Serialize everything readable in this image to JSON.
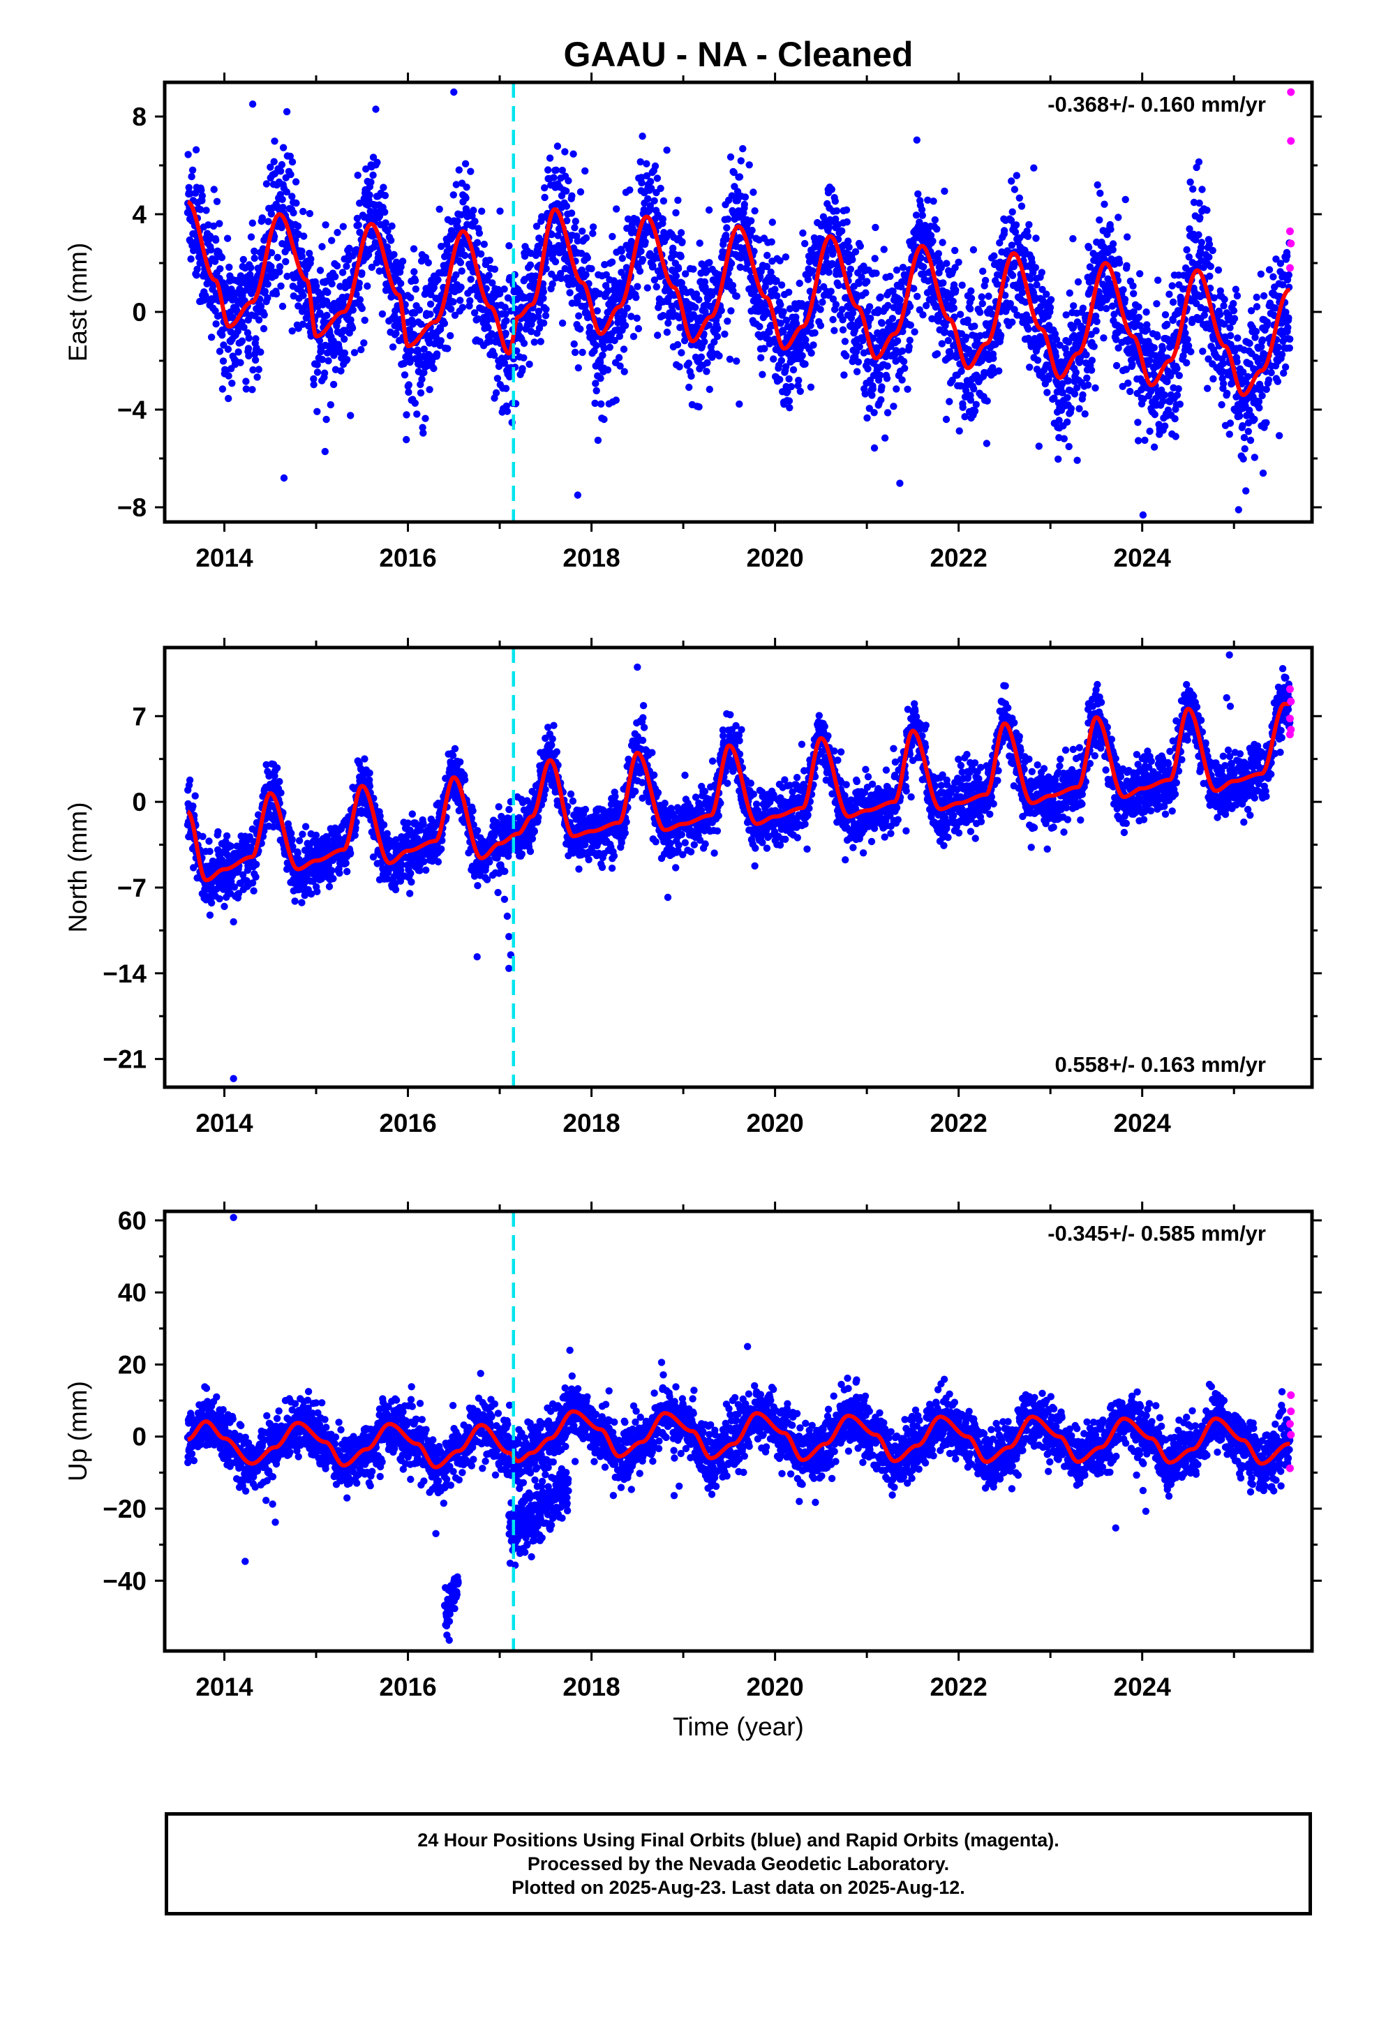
{
  "title": "GAAU  - NA - Cleaned",
  "xlabel": "Time (year)",
  "colors": {
    "final_orbits": "#0000ff",
    "rapid_orbits": "#ff00ff",
    "model_fit": "#ff0000",
    "equipment_change": "#00e5ee",
    "frame": "#000000"
  },
  "footer": {
    "line1": "24 Hour Positions Using Final Orbits (blue) and Rapid Orbits (magenta).",
    "line2": "Processed by the Nevada Geodetic Laboratory.",
    "line3": "Plotted on 2025-Aug-23. Last data on 2025-Aug-12."
  },
  "chart_data": [
    {
      "type": "scatter",
      "component": "east",
      "ylabel": "East (mm)",
      "xlim": [
        2013.35,
        2025.85
      ],
      "ylim": [
        -8.6,
        9.4
      ],
      "x_ticks": [
        2014,
        2016,
        2018,
        2020,
        2022,
        2024
      ],
      "x_tick_labels": [
        "2014",
        "2016",
        "2018",
        "2020",
        "2022",
        "2024"
      ],
      "y_ticks": [
        -8,
        -4,
        0,
        4,
        8
      ],
      "y_tick_labels": [
        "−8",
        "−4",
        "0",
        "4",
        "8"
      ],
      "rate_text": "-0.368+/- 0.160 mm/yr",
      "rate_position": "top-right",
      "equipment_change_year": 2017.15,
      "data_start": 2013.6,
      "data_end": 2025.61,
      "model_fit": {
        "x": [
          2013.6,
          2013.9,
          2014.05,
          2014.3,
          2014.6,
          2014.9,
          2015.0,
          2015.3,
          2015.6,
          2015.9,
          2016.0,
          2016.3,
          2016.6,
          2016.9,
          2017.1,
          2017.2,
          2017.35,
          2017.6,
          2017.9,
          2018.1,
          2018.3,
          2018.6,
          2018.9,
          2019.1,
          2019.3,
          2019.6,
          2019.9,
          2020.1,
          2020.3,
          2020.6,
          2020.9,
          2021.1,
          2021.3,
          2021.6,
          2021.9,
          2022.1,
          2022.3,
          2022.6,
          2022.9,
          2023.1,
          2023.3,
          2023.6,
          2023.9,
          2024.1,
          2024.3,
          2024.6,
          2024.9,
          2025.1,
          2025.3,
          2025.6
        ],
        "y": [
          4.5,
          1.3,
          -0.6,
          0.4,
          4.0,
          1.3,
          -1.0,
          0.0,
          3.6,
          0.7,
          -1.4,
          -0.4,
          3.3,
          0.2,
          -1.7,
          -0.2,
          0.3,
          4.2,
          1.2,
          -0.9,
          0.2,
          3.9,
          1.0,
          -1.2,
          -0.2,
          3.5,
          0.6,
          -1.5,
          -0.6,
          3.1,
          0.2,
          -1.9,
          -0.9,
          2.7,
          -0.3,
          -2.3,
          -1.3,
          2.4,
          -0.7,
          -2.7,
          -1.7,
          2.0,
          -1.0,
          -3.0,
          -2.0,
          1.7,
          -1.4,
          -3.4,
          -2.4,
          0.9
        ],
        "noise_mm": 1.4
      },
      "outliers": [
        {
          "x": 2014.65,
          "y": -6.8
        },
        {
          "x": 2016.5,
          "y": 9.0
        },
        {
          "x": 2017.85,
          "y": -7.5
        },
        {
          "x": 2025.05,
          "y": -8.1
        },
        {
          "x": 2015.65,
          "y": 8.3
        }
      ],
      "rapid_points": [
        {
          "x": 2025.62,
          "y": 9.0
        },
        {
          "x": 2025.62,
          "y": 7.0
        },
        {
          "x": 2025.61,
          "y": 3.3
        },
        {
          "x": 2025.62,
          "y": 2.8
        },
        {
          "x": 2025.61,
          "y": 1.8
        }
      ]
    },
    {
      "type": "scatter",
      "component": "north",
      "ylabel": "North (mm)",
      "xlim": [
        2013.35,
        2025.85
      ],
      "ylim": [
        -23.3,
        12.6
      ],
      "x_ticks": [
        2014,
        2016,
        2018,
        2020,
        2022,
        2024
      ],
      "x_tick_labels": [
        "2014",
        "2016",
        "2018",
        "2020",
        "2022",
        "2024"
      ],
      "y_ticks": [
        -21,
        -14,
        -7,
        0,
        7
      ],
      "y_tick_labels": [
        "−21",
        "−14",
        "−7",
        "0",
        "7"
      ],
      "rate_text": "0.558+/- 0.163 mm/yr",
      "rate_position": "bottom-right",
      "equipment_change_year": 2017.15,
      "data_start": 2013.6,
      "data_end": 2025.61,
      "model_fit": {
        "x": [
          2013.6,
          2013.8,
          2014.0,
          2014.3,
          2014.5,
          2014.8,
          2015.0,
          2015.3,
          2015.5,
          2015.8,
          2016.0,
          2016.3,
          2016.5,
          2016.8,
          2017.0,
          2017.2,
          2017.35,
          2017.55,
          2017.8,
          2018.0,
          2018.3,
          2018.5,
          2018.8,
          2019.0,
          2019.3,
          2019.5,
          2019.8,
          2020.0,
          2020.3,
          2020.5,
          2020.8,
          2021.0,
          2021.3,
          2021.5,
          2021.8,
          2022.0,
          2022.3,
          2022.5,
          2022.8,
          2023.0,
          2023.3,
          2023.5,
          2023.8,
          2024.0,
          2024.3,
          2024.5,
          2024.8,
          2025.0,
          2025.3,
          2025.55
        ],
        "y": [
          -0.8,
          -6.4,
          -5.5,
          -4.5,
          0.7,
          -5.5,
          -4.8,
          -3.9,
          1.3,
          -5.0,
          -4.0,
          -3.2,
          2.0,
          -4.6,
          -3.4,
          -2.6,
          -1.2,
          3.4,
          -2.8,
          -2.4,
          -1.7,
          4.0,
          -2.3,
          -1.8,
          -1.1,
          4.6,
          -1.8,
          -1.2,
          -0.5,
          5.2,
          -1.2,
          -0.7,
          0.0,
          5.8,
          -0.6,
          -0.1,
          0.6,
          6.4,
          -0.1,
          0.5,
          1.2,
          6.9,
          0.4,
          1.1,
          1.8,
          7.6,
          0.9,
          1.7,
          2.3,
          8.0
        ],
        "noise_mm": 1.2
      },
      "outliers": [
        {
          "x": 2014.1,
          "y": -22.6
        },
        {
          "x": 2014.1,
          "y": -9.8
        },
        {
          "x": 2017.1,
          "y": -11.0
        },
        {
          "x": 2017.12,
          "y": -12.5
        },
        {
          "x": 2017.1,
          "y": -13.6
        },
        {
          "x": 2018.5,
          "y": 11.0
        },
        {
          "x": 2024.95,
          "y": 12.0
        },
        {
          "x": 2024.92,
          "y": 8.5
        },
        {
          "x": 2024.96,
          "y": 7.8
        }
      ],
      "rapid_points": [
        {
          "x": 2025.61,
          "y": 9.2
        },
        {
          "x": 2025.62,
          "y": 8.2
        },
        {
          "x": 2025.61,
          "y": 6.8
        },
        {
          "x": 2025.62,
          "y": 5.9
        },
        {
          "x": 2025.61,
          "y": 5.5
        }
      ]
    },
    {
      "type": "scatter",
      "component": "up",
      "ylabel": "Up (mm)",
      "xlim": [
        2013.35,
        2025.85
      ],
      "ylim": [
        -59.5,
        62.5
      ],
      "x_ticks": [
        2014,
        2016,
        2018,
        2020,
        2022,
        2024
      ],
      "x_tick_labels": [
        "2014",
        "2016",
        "2018",
        "2020",
        "2022",
        "2024"
      ],
      "y_ticks": [
        -40,
        -20,
        0,
        20,
        40,
        60
      ],
      "y_tick_labels": [
        "−40",
        "−20",
        "0",
        "20",
        "40",
        "60"
      ],
      "rate_text": "-0.345+/- 0.585 mm/yr",
      "rate_position": "top-right",
      "equipment_change_year": 2017.15,
      "data_start": 2013.6,
      "data_end": 2025.61,
      "model_fit": {
        "x": [
          2013.6,
          2013.8,
          2014.0,
          2014.3,
          2014.55,
          2014.8,
          2015.1,
          2015.3,
          2015.55,
          2015.8,
          2016.1,
          2016.3,
          2016.55,
          2016.8,
          2017.1,
          2017.2,
          2017.35,
          2017.55,
          2017.8,
          2018.1,
          2018.3,
          2018.55,
          2018.8,
          2019.1,
          2019.3,
          2019.55,
          2019.8,
          2020.1,
          2020.3,
          2020.55,
          2020.8,
          2021.1,
          2021.3,
          2021.55,
          2021.8,
          2022.1,
          2022.3,
          2022.55,
          2022.8,
          2023.1,
          2023.3,
          2023.55,
          2023.8,
          2024.1,
          2024.3,
          2024.55,
          2024.8,
          2025.1,
          2025.3,
          2025.6
        ],
        "y": [
          -0.8,
          4.2,
          -0.5,
          -7.5,
          -3.0,
          3.8,
          -1.5,
          -8.0,
          -3.5,
          3.5,
          -2.0,
          -8.5,
          -4.0,
          3.2,
          -4.5,
          -6.8,
          -4.5,
          -0.5,
          7.0,
          2.0,
          -5.5,
          -1.5,
          6.5,
          1.5,
          -6.0,
          -2.0,
          6.5,
          1.0,
          -6.5,
          -2.0,
          5.8,
          0.5,
          -6.8,
          -2.5,
          5.5,
          0.0,
          -7.0,
          -3.0,
          5.5,
          0.0,
          -7.0,
          -3.0,
          5.0,
          -0.5,
          -7.2,
          -3.5,
          5.0,
          -1.0,
          -7.5,
          -2.0
        ],
        "noise_mm": 4.0
      },
      "offset_clusters": [
        {
          "x_range": [
            2016.4,
            2016.55
          ],
          "y_range": [
            -56,
            -38
          ]
        },
        {
          "x_range": [
            2017.1,
            2017.75
          ],
          "y_range": [
            -37,
            -8
          ]
        }
      ],
      "outliers": [
        {
          "x": 2014.1,
          "y": 60.8
        },
        {
          "x": 2019.7,
          "y": 25.0
        },
        {
          "x": 2016.45,
          "y": -56.5
        }
      ],
      "rapid_points": [
        {
          "x": 2025.62,
          "y": 11.5
        },
        {
          "x": 2025.62,
          "y": 7.0
        },
        {
          "x": 2025.61,
          "y": 3.5
        },
        {
          "x": 2025.62,
          "y": 0.5
        },
        {
          "x": 2025.61,
          "y": -8.8
        }
      ]
    }
  ]
}
